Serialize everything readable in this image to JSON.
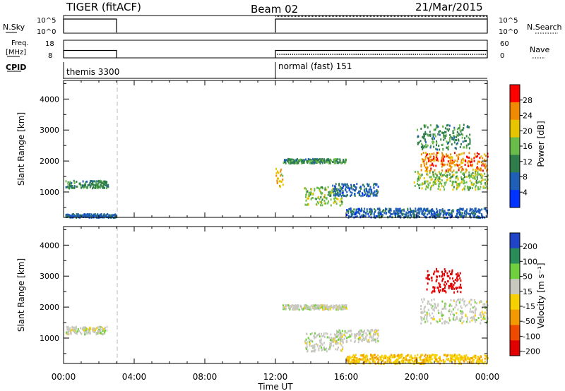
{
  "header": {
    "title": "TIGER (fitACF)",
    "beam": "Beam 02",
    "date": "21/Mar/2015"
  },
  "status_panels": {
    "nsky_label": "N.Sky",
    "nsky_ticks": [
      "10^5",
      "10^0"
    ],
    "nsearch_label": "N.Search",
    "nsearch_ticks": [
      "10^5",
      "10^0"
    ],
    "freq_label_line1": "Freq.",
    "freq_label_line2": "[MHz]",
    "freq_ticks": [
      "18",
      "8"
    ],
    "nave_label": "Nave",
    "nave_ticks": [
      "60",
      "0"
    ],
    "cpid_label": "CPID",
    "cpid_segments": [
      {
        "label": "themis 3300",
        "start_hour": 0,
        "end_hour": 3.0
      },
      {
        "label": "normal (fast) 151",
        "start_hour": 12.0,
        "end_hour": 24.0
      }
    ],
    "freq_mhz_segments": [
      {
        "start_hour": 0,
        "end_hour": 3.0,
        "value": 10
      },
      {
        "start_hour": 12.0,
        "end_hour": 24.0,
        "value": 10
      }
    ],
    "nave_dotted_value": 12
  },
  "x_axis": {
    "label": "Time UT",
    "ticks": [
      "00:00",
      "04:00",
      "08:00",
      "12:00",
      "16:00",
      "20:00",
      "00:00"
    ],
    "range_hours": [
      0,
      24
    ]
  },
  "y_axis": {
    "label": "Slant Range [km]",
    "ticks": [
      "1000",
      "2000",
      "3000",
      "4000"
    ],
    "range_km": [
      180,
      4600
    ]
  },
  "colorbars": {
    "power": {
      "label": "Power [dB]",
      "ticks": [
        "4",
        "8",
        "12",
        "16",
        "20",
        "24",
        "28"
      ],
      "colors": [
        "#0033ff",
        "#1f5fb5",
        "#2e7d4a",
        "#6bbb4a",
        "#e6c400",
        "#f08a00",
        "#ff0000"
      ]
    },
    "velocity": {
      "label": "Velocity [m s⁻¹]",
      "ticks": [
        "200",
        "100",
        "50",
        "15",
        "-15",
        "-50",
        "-100",
        "-200"
      ],
      "colors": [
        "#1f44c8",
        "#2a8c58",
        "#6fcf3c",
        "#c8c8c0",
        "#f6d000",
        "#f29a00",
        "#ee4a00",
        "#e00000"
      ]
    }
  },
  "chart_data": {
    "type": "heatmap",
    "title": "TIGER (fitACF)",
    "xlabel": "Time UT",
    "ylabel": "Slant Range [km]",
    "xlim_hours": [
      0,
      24
    ],
    "ylim_km": [
      180,
      4600
    ],
    "data_gap_hours": [
      3.0,
      12.0
    ],
    "panels": [
      {
        "name": "Power",
        "unit": "dB",
        "scale": [
          0,
          30
        ],
        "echo_regions": [
          {
            "t": [
              0.1,
              2.5
            ],
            "r": [
              1150,
              1400
            ],
            "level": 2
          },
          {
            "t": [
              0.1,
              3.0
            ],
            "r": [
              200,
              320
            ],
            "level": 1
          },
          {
            "t": [
              12.0,
              12.4
            ],
            "r": [
              1200,
              1800
            ],
            "level": 4
          },
          {
            "t": [
              12.4,
              16.0
            ],
            "r": [
              1950,
              2100
            ],
            "level": 2
          },
          {
            "t": [
              13.6,
              15.8
            ],
            "r": [
              600,
              1200
            ],
            "level": 3
          },
          {
            "t": [
              15.2,
              17.8
            ],
            "r": [
              900,
              1300
            ],
            "level": 1
          },
          {
            "t": [
              16.0,
              24.0
            ],
            "r": [
              200,
              500
            ],
            "level": 1
          },
          {
            "t": [
              19.8,
              24.0
            ],
            "r": [
              1100,
              1700
            ],
            "level": 3
          },
          {
            "t": [
              20.2,
              24.0
            ],
            "r": [
              1700,
              2300
            ],
            "level": 5
          },
          {
            "t": [
              20.0,
              23.0
            ],
            "r": [
              2400,
              3200
            ],
            "level": 2
          }
        ]
      },
      {
        "name": "Velocity",
        "unit": "m s^-1",
        "scale": [
          -200,
          200
        ],
        "echo_regions": [
          {
            "t": [
              0.1,
              2.5
            ],
            "r": [
              1150,
              1400
            ],
            "v": 0
          },
          {
            "t": [
              12.4,
              16.0
            ],
            "r": [
              1950,
              2100
            ],
            "v": 0
          },
          {
            "t": [
              13.6,
              15.8
            ],
            "r": [
              600,
              1200
            ],
            "v": 0
          },
          {
            "t": [
              15.2,
              17.8
            ],
            "r": [
              900,
              1300
            ],
            "v": 0
          },
          {
            "t": [
              16.0,
              24.0
            ],
            "r": [
              200,
              500
            ],
            "v": -40
          },
          {
            "t": [
              20.2,
              24.0
            ],
            "r": [
              1500,
              2300
            ],
            "v": 0
          },
          {
            "t": [
              20.5,
              22.5
            ],
            "r": [
              2500,
              3300
            ],
            "v": -200
          }
        ]
      }
    ]
  }
}
